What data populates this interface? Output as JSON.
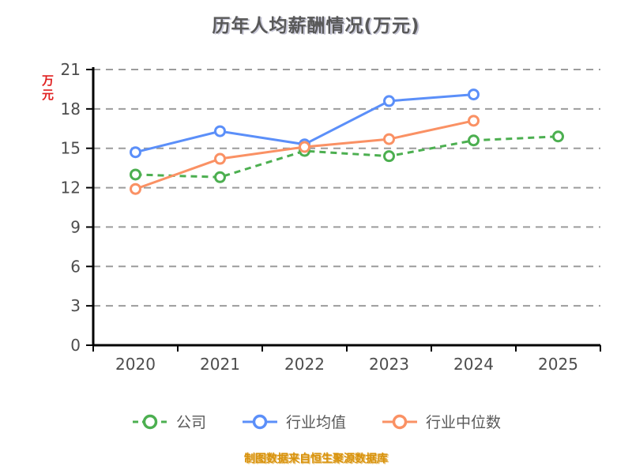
{
  "title": "历年人均薪酬情况(万元)",
  "footer": "制图数据来自恒生聚源数据库",
  "y_axis_label": "万元",
  "colors": {
    "company": "#4caf50",
    "industry_avg": "#5b8ff9",
    "industry_median": "#fa9164",
    "title_text": "#595959",
    "axis_text": "#4d4d4d",
    "ylabel_red": "#e02020",
    "footer_text": "#d8920b",
    "gridline": "#9c9c9c",
    "axis_line": "#000000"
  },
  "chart_data": {
    "type": "line",
    "title": "历年人均薪酬情况(万元)",
    "xlabel": "",
    "ylabel": "万元",
    "categories": [
      "2020",
      "2021",
      "2022",
      "2023",
      "2024",
      "2025"
    ],
    "y_ticks": [
      0,
      3,
      6,
      9,
      12,
      15,
      18,
      21
    ],
    "ylim": [
      0,
      21
    ],
    "grid": true,
    "grid_style": "dashed",
    "legend_position": "bottom",
    "series": [
      {
        "name": "公司",
        "color": "#4caf50",
        "dash": true,
        "values": [
          13.0,
          12.8,
          14.8,
          14.4,
          15.6,
          15.9
        ]
      },
      {
        "name": "行业均值",
        "color": "#5b8ff9",
        "dash": false,
        "values": [
          14.7,
          16.3,
          15.3,
          18.6,
          19.1,
          null
        ]
      },
      {
        "name": "行业中位数",
        "color": "#fa9164",
        "dash": false,
        "values": [
          11.9,
          14.2,
          15.1,
          15.7,
          17.1,
          null
        ]
      }
    ]
  }
}
